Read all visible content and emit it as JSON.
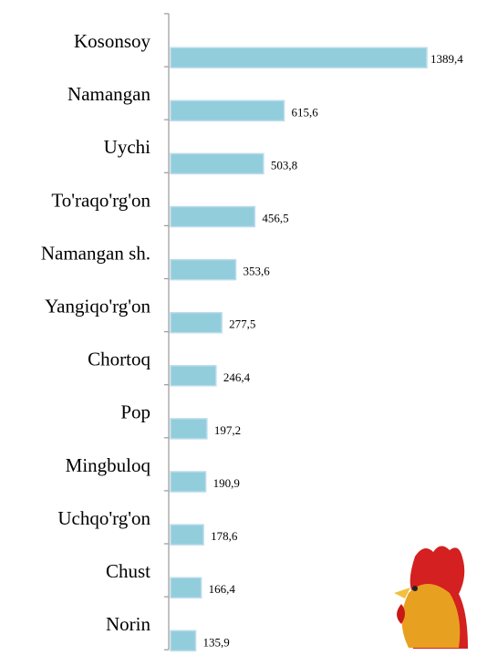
{
  "chart_data": {
    "type": "bar",
    "orientation": "horizontal",
    "categories": [
      "Kosonsoy",
      "Namangan",
      "Uychi",
      "To'raqo'rg'on",
      "Namangan sh.",
      "Yangiqo'rg'on",
      "Chortoq",
      "Pop",
      "Mingbuloq",
      "Uchqo'rg'on",
      "Chust",
      "Norin"
    ],
    "values": [
      1389.4,
      615.6,
      503.8,
      456.5,
      353.6,
      277.5,
      246.4,
      197.2,
      190.9,
      178.6,
      166.4,
      135.9
    ],
    "value_labels": [
      "1389,4",
      "615,6",
      "503,8",
      "456,5",
      "353,6",
      "277,5",
      "246,4",
      "197,2",
      "190,9",
      "178,6",
      "166,4",
      "135,9"
    ],
    "color": "#92cddc"
  }
}
